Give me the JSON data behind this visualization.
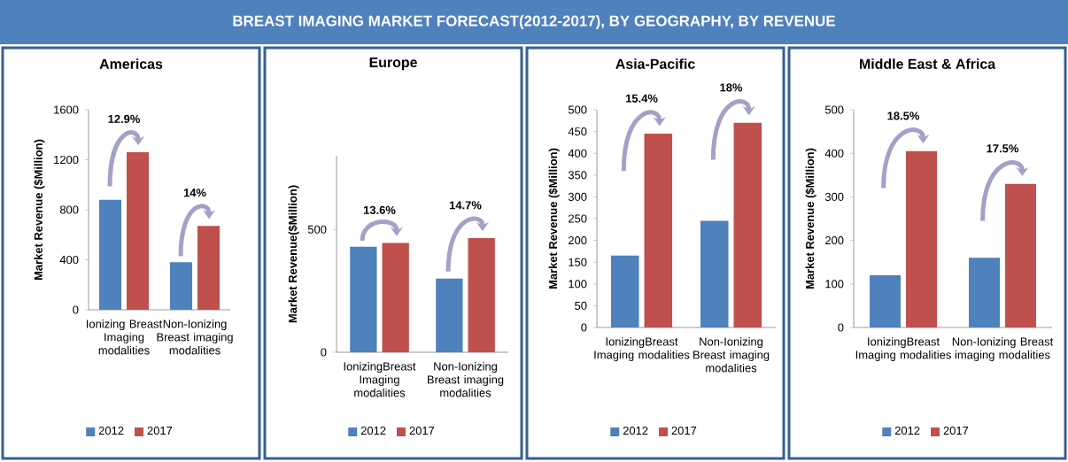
{
  "chart_data": [
    {
      "type": "bar",
      "subtitle": "BREAST IMAGING MARKET FORECAST(2012-2017), BY GEOGRAPHY, BY REVENUE",
      "title": "Americas",
      "ylabel": "Market Revenue ($Million)",
      "categories": [
        "Ionizing Breast Imaging modalities",
        "Non-Ionizing Breast imaging modalities"
      ],
      "series": [
        {
          "name": "2012",
          "color": "#4f81bd",
          "values": [
            880,
            380
          ]
        },
        {
          "name": "2017",
          "color": "#c0504d",
          "values": [
            1260,
            670
          ]
        }
      ],
      "ylim": [
        0,
        1600
      ],
      "yticks": [
        0,
        400,
        800,
        1200,
        1600
      ],
      "legend": "bottom",
      "annotations": [
        "12.9%",
        "14%"
      ]
    },
    {
      "type": "bar",
      "title": "Europe",
      "ylabel": "Market Revenue($Million)",
      "categories": [
        "IonizingBreast Imaging modalities",
        "Non-Ionizing Breast imaging modalities"
      ],
      "series": [
        {
          "name": "2012",
          "color": "#4f81bd",
          "values": [
            430,
            300
          ]
        },
        {
          "name": "2017",
          "color": "#c0504d",
          "values": [
            445,
            465
          ]
        }
      ],
      "ylim": [
        0,
        800
      ],
      "yticks": [
        0,
        500
      ],
      "legend": "bottom",
      "annotations": [
        "13.6%",
        "14.7%"
      ]
    },
    {
      "type": "bar",
      "title": "Asia-Pacific",
      "ylabel": "Market Revenue ($Million)",
      "categories": [
        "IonizingBreast Imaging modalities",
        "Non-Ionizing Breast imaging modalities"
      ],
      "series": [
        {
          "name": "2012",
          "color": "#4f81bd",
          "values": [
            165,
            245
          ]
        },
        {
          "name": "2017",
          "color": "#c0504d",
          "values": [
            445,
            470
          ]
        }
      ],
      "ylim": [
        0,
        500
      ],
      "yticks": [
        0,
        50,
        100,
        150,
        200,
        250,
        300,
        350,
        400,
        450,
        500
      ],
      "legend": "bottom",
      "annotations": [
        "15.4%",
        "18%"
      ]
    },
    {
      "type": "bar",
      "title": "Middle East & Africa",
      "ylabel": "Market Revenue ($Million)",
      "categories": [
        "IonizingBreast Imaging modalities",
        "Non-Ionizing Breast imaging modalities"
      ],
      "series": [
        {
          "name": "2012",
          "color": "#4f81bd",
          "values": [
            120,
            160
          ]
        },
        {
          "name": "2017",
          "color": "#c0504d",
          "values": [
            405,
            330
          ]
        }
      ],
      "ylim": [
        0,
        500
      ],
      "yticks": [
        0,
        100,
        200,
        300,
        400,
        500
      ],
      "legend": "bottom",
      "annotations": [
        "18.5%",
        "17.5%"
      ]
    }
  ]
}
